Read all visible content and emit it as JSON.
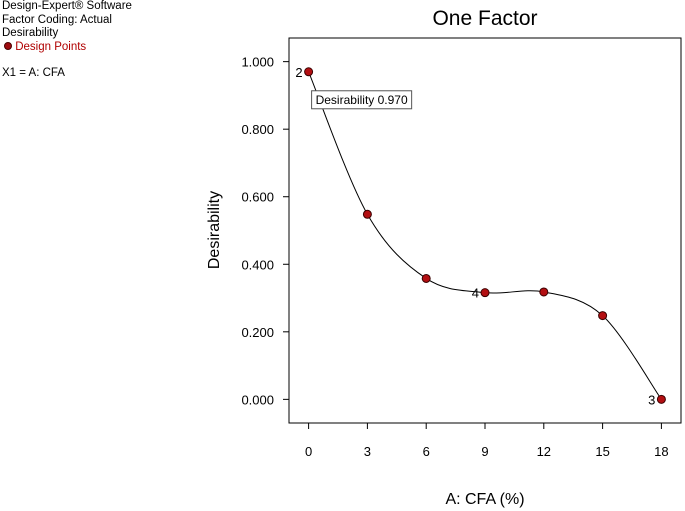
{
  "info_panel": {
    "software": "Design-Expert® Software",
    "coding": "Factor Coding: Actual",
    "response": "Desirability",
    "legend_label": "Design Points",
    "factor": "X1 = A: CFA"
  },
  "colors": {
    "point_fill": "#b30f12",
    "legend_text": "#b00000",
    "curve": "#000000"
  },
  "chart_data": {
    "type": "line",
    "title": "One Factor",
    "xlabel": "A: CFA (%)",
    "ylabel": "Desirability",
    "xlim": [
      -1,
      19
    ],
    "ylim": [
      -0.07,
      1.07
    ],
    "x_ticks": [
      0,
      3,
      6,
      9,
      12,
      15,
      18
    ],
    "x_tick_labels": [
      "0",
      "3",
      "6",
      "9",
      "12",
      "15",
      "18"
    ],
    "y_ticks": [
      0,
      0.2,
      0.4,
      0.6,
      0.8,
      1.0
    ],
    "y_tick_labels": [
      "0.000",
      "0.200",
      "0.400",
      "0.600",
      "0.800",
      "1.000"
    ],
    "grid": false,
    "curve": {
      "x": [
        0,
        3,
        6,
        9,
        12,
        15,
        18
      ],
      "y": [
        0.97,
        0.548,
        0.358,
        0.316,
        0.318,
        0.248,
        0.0
      ]
    },
    "design_points": [
      {
        "x": 0,
        "y": 0.97,
        "label": "2"
      },
      {
        "x": 3,
        "y": 0.548,
        "label": ""
      },
      {
        "x": 6,
        "y": 0.358,
        "label": ""
      },
      {
        "x": 9,
        "y": 0.316,
        "label": "4"
      },
      {
        "x": 12,
        "y": 0.318,
        "label": ""
      },
      {
        "x": 15,
        "y": 0.248,
        "label": ""
      },
      {
        "x": 18,
        "y": 0.0,
        "label": "3"
      }
    ],
    "flag": {
      "x": 0,
      "y": 0.97,
      "text": "Desirability 0.970"
    }
  }
}
